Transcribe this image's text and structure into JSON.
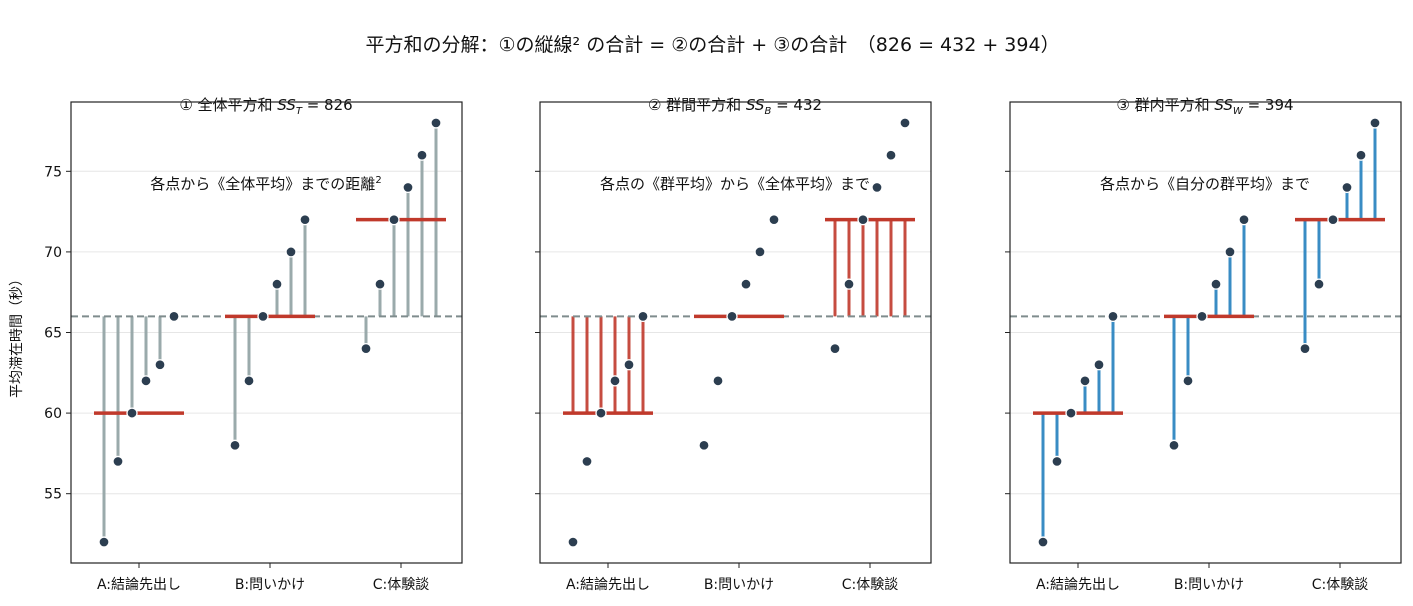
{
  "suptitle": {
    "text": "平方和の分解：①の縦線² の合計 = ②の合計 + ③の合計　（826 = 432 + 394）"
  },
  "panels": [
    {
      "title_line1_prefix": "① 全体平方和 ",
      "title_symbol": "SS",
      "title_sub": "T",
      "title_value": " = 826",
      "title_line2": "各点から《全体平均》までの距離",
      "title_line2_sup": "2"
    },
    {
      "title_line1_prefix": "② 群間平方和 ",
      "title_symbol": "SS",
      "title_sub": "B",
      "title_value": " = 432",
      "title_line2": "各点の《群平均》から《全体平均》まで",
      "title_line2_sup": ""
    },
    {
      "title_line1_prefix": "③ 群内平方和 ",
      "title_symbol": "SS",
      "title_sub": "W",
      "title_value": " = 394",
      "title_line2": "各点から《自分の群平均》まで",
      "title_line2_sup": ""
    }
  ],
  "ylabel": "平均滞在時間（秒）",
  "colors": {
    "point": "#2c3e50",
    "grand_mean_line": "#7f8c8d",
    "group_mean_line": "#c0392b",
    "total_stems": "#95a5a6",
    "between_stems": "#c0392b",
    "within_stems": "#2e86c1"
  },
  "chart_data": {
    "type": "scatter",
    "categories": [
      "A:結論先出し",
      "B:問いかけ",
      "C:体験談"
    ],
    "groups": [
      {
        "name": "A:結論先出し",
        "values": [
          52,
          57,
          60,
          62,
          63,
          66
        ],
        "mean": 60
      },
      {
        "name": "B:問いかけ",
        "values": [
          58,
          62,
          66,
          68,
          70,
          72
        ],
        "mean": 66
      },
      {
        "name": "C:体験談",
        "values": [
          64,
          68,
          72,
          74,
          76,
          78
        ],
        "mean": 72
      }
    ],
    "grand_mean": 66,
    "ss_total": 826,
    "ss_between": 432,
    "ss_within": 394,
    "yticks": [
      55,
      60,
      65,
      70,
      75
    ],
    "ylim": [
      50.7,
      79.3
    ],
    "ylabel": "平均滞在時間（秒）",
    "grid": true,
    "sharey": true
  }
}
